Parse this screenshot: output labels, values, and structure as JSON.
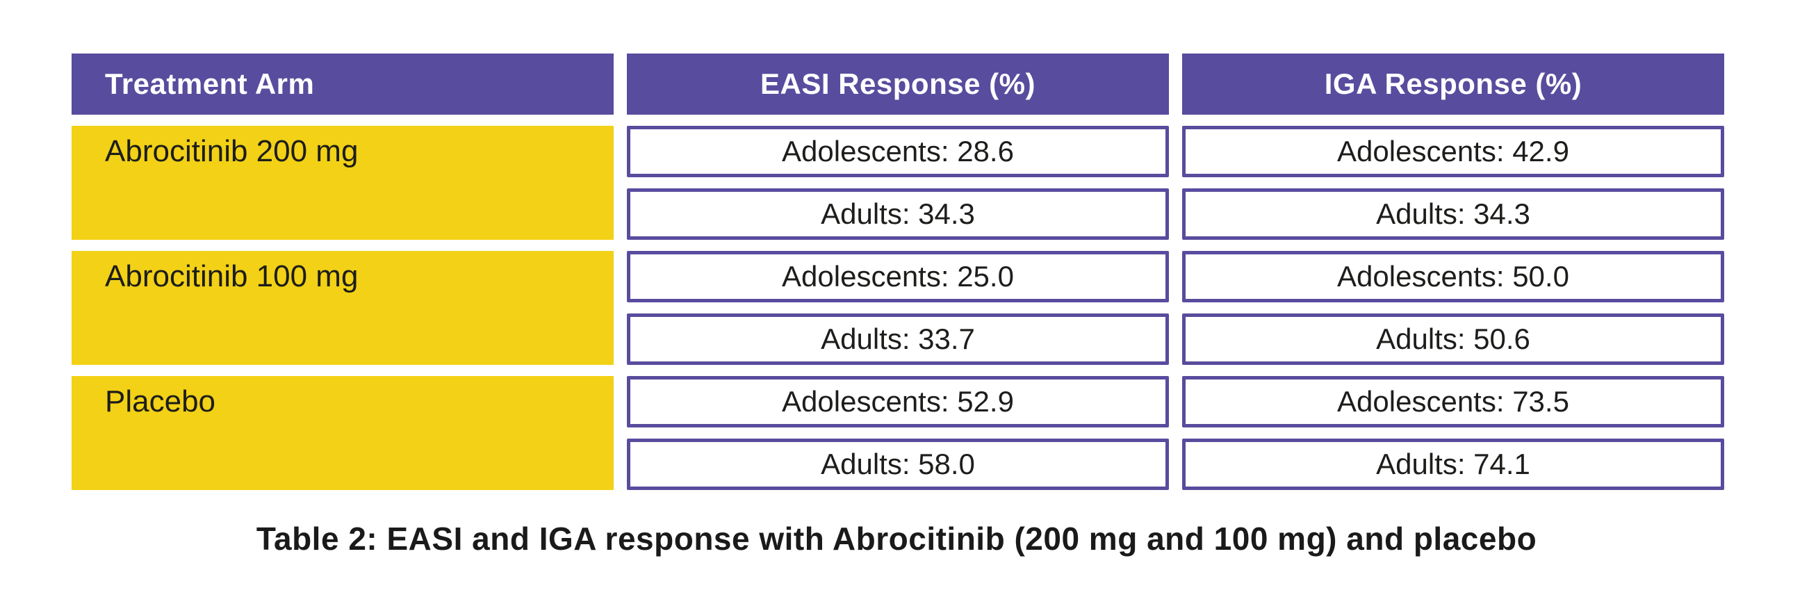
{
  "colors": {
    "background": "#ffffff",
    "header_purple": "#584c9e",
    "row_yellow": "#f2d116",
    "cell_border_purple": "#584c9e",
    "header_text": "#ffffff",
    "body_text": "#1d1d1b",
    "caption_text": "#1a1a1a"
  },
  "table": {
    "headers": [
      "Treatment Arm",
      "EASI Response (%)",
      "IGA Response (%)"
    ],
    "arms": [
      {
        "label": "Abrocitinib 200 mg",
        "easi": [
          "Adolescents: 28.6",
          "Adults: 34.3"
        ],
        "iga": [
          "Adolescents: 42.9",
          "Adults: 34.3"
        ]
      },
      {
        "label": "Abrocitinib 100 mg",
        "easi": [
          "Adolescents: 25.0",
          "Adults: 33.7"
        ],
        "iga": [
          "Adolescents: 50.0",
          "Adults: 50.6"
        ]
      },
      {
        "label": "Placebo",
        "easi": [
          "Adolescents: 52.9",
          "Adults: 58.0"
        ],
        "iga": [
          "Adolescents: 73.5",
          "Adults: 74.1"
        ]
      }
    ]
  },
  "caption": {
    "text": "Table 2: EASI and IGA response with Abrocitinib (200 mg and 100 mg) and placebo"
  },
  "chart_data": {
    "type": "table",
    "title": "Table 2: EASI and IGA response with Abrocitinib (200 mg and 100 mg) and placebo",
    "columns": [
      "Treatment Arm",
      "EASI Response (%)",
      "IGA Response (%)"
    ],
    "rows": [
      {
        "treatment_arm": "Abrocitinib 200 mg",
        "easi_pct": {
          "adolescents": 28.6,
          "adults": 34.3
        },
        "iga_pct": {
          "adolescents": 42.9,
          "adults": 34.3
        }
      },
      {
        "treatment_arm": "Abrocitinib 100 mg",
        "easi_pct": {
          "adolescents": 25.0,
          "adults": 33.7
        },
        "iga_pct": {
          "adolescents": 50.0,
          "adults": 50.6
        }
      },
      {
        "treatment_arm": "Placebo",
        "easi_pct": {
          "adolescents": 52.9,
          "adults": 58.0
        },
        "iga_pct": {
          "adolescents": 73.5,
          "adults": 74.1
        }
      }
    ],
    "layout": {
      "header_fill": "#584c9e",
      "arm_column_fill": "#f2d116",
      "data_cell_fill": "#ffffff",
      "data_cell_border": "#584c9e"
    }
  }
}
